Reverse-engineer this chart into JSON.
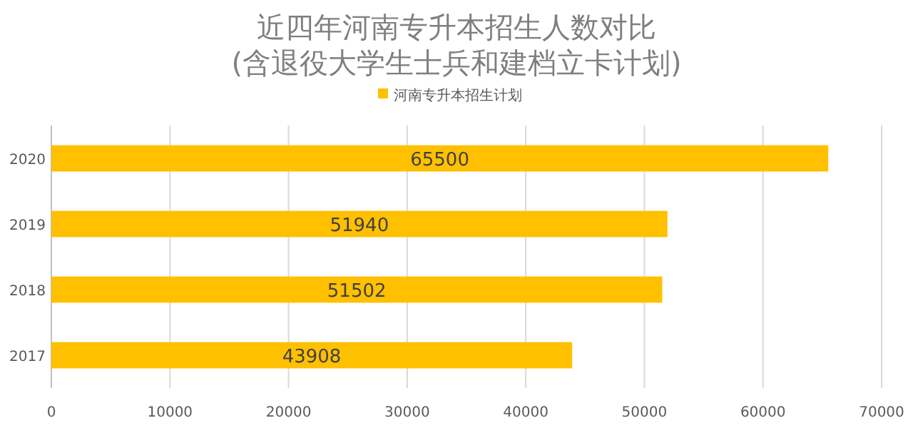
{
  "chart_data": {
    "type": "bar",
    "orientation": "horizontal",
    "title": "近四年河南专升本招生人数对比\n(含退役大学生士兵和建档立卡计划)",
    "categories": [
      "2020",
      "2019",
      "2018",
      "2017"
    ],
    "series": [
      {
        "name": "河南专升本招生计划",
        "color": "#ffc000",
        "values": [
          65500,
          51940,
          51502,
          43908
        ]
      }
    ],
    "xlim": [
      0,
      70000
    ],
    "xticks": [
      0,
      10000,
      20000,
      30000,
      40000,
      50000,
      60000,
      70000
    ],
    "grid": "x",
    "legend": "top",
    "data_labels": true
  }
}
